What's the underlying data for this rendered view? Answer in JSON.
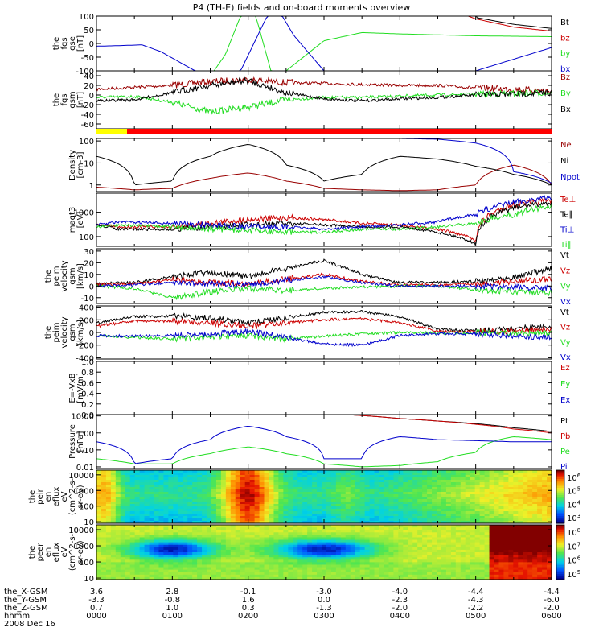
{
  "title": "P4 (TH-E) fields and on-board moments overview",
  "date_label": "2008 Dec 16",
  "x_axis": {
    "row_labels": [
      "the_X-GSM",
      "the_Y-GSM",
      "the_Z-GSM",
      "hhmm"
    ],
    "ticks": [
      {
        "hhmm": "0000",
        "x": "3.6",
        "y": "-3.3",
        "z": "0.7"
      },
      {
        "hhmm": "0100",
        "x": "2.8",
        "y": "-0.8",
        "z": "1.0"
      },
      {
        "hhmm": "0200",
        "x": "-0.1",
        "y": "1.6",
        "z": "0.3"
      },
      {
        "hhmm": "0300",
        "x": "-3.0",
        "y": "0.0",
        "z": "-1.3"
      },
      {
        "hhmm": "0400",
        "x": "-4.0",
        "y": "-2.3",
        "z": "-2.0"
      },
      {
        "hhmm": "0500",
        "x": "-4.4",
        "y": "-4.3",
        "z": "-2.2"
      },
      {
        "hhmm": "0600",
        "x": "-4.4",
        "y": "-6.0",
        "z": "-2.0"
      }
    ]
  },
  "colors": {
    "black": "#000000",
    "red": "#cc0000",
    "green": "#22dd22",
    "blue": "#0000cc",
    "darkred": "#990000",
    "yellow": "#ffff00",
    "bright_red": "#ff0000"
  },
  "panels": [
    {
      "id": "fgs-gse",
      "ylabel": [
        "the",
        "fgs",
        "gse",
        "[nT]"
      ],
      "ylim": [
        -100,
        100
      ],
      "yticks": [
        "100",
        "50",
        "0",
        "-50",
        "-100"
      ],
      "legend": [
        {
          "label": "Bt",
          "color": "#000000"
        },
        {
          "label": "bz",
          "color": "#cc0000"
        },
        {
          "label": "by",
          "color": "#22dd22"
        },
        {
          "label": "bx",
          "color": "#0000cc"
        }
      ]
    },
    {
      "id": "fgs-gsm",
      "ylabel": [
        "the",
        "fgs",
        "gsm",
        "[nT]"
      ],
      "ylim": [
        -70,
        50
      ],
      "yticks": [
        "60",
        "40",
        "20",
        "0",
        "-20",
        "-40",
        "-60"
      ],
      "legend": [
        {
          "label": "Bz",
          "color": "#990000"
        },
        {
          "label": "By",
          "color": "#22dd22"
        },
        {
          "label": "Bx",
          "color": "#000000"
        }
      ]
    },
    {
      "id": "density",
      "ylabel": [
        "Density",
        "[cm-3]"
      ],
      "scale": "log",
      "ylim": [
        0.5,
        130
      ],
      "yticks": [
        "100",
        "10",
        "1"
      ],
      "legend": [
        {
          "label": "Ne",
          "color": "#990000"
        },
        {
          "label": "Ni",
          "color": "#000000"
        },
        {
          "label": "Npot",
          "color": "#0000cc"
        }
      ]
    },
    {
      "id": "temperature",
      "ylabel": [
        "magt3",
        "[eV]"
      ],
      "scale": "log",
      "ylim": [
        40,
        6000
      ],
      "yticks": [
        "1000",
        "100"
      ],
      "legend": [
        {
          "label": "Te⊥",
          "color": "#cc0000"
        },
        {
          "label": "Te∥",
          "color": "#000000"
        },
        {
          "label": "Ti⊥",
          "color": "#0000cc"
        },
        {
          "label": "Ti∥",
          "color": "#22dd22"
        }
      ]
    },
    {
      "id": "velocity-gsm-electron",
      "ylabel": [
        "the",
        "peim",
        "velocity",
        "gsm",
        "[km/s]"
      ],
      "ylim": [
        -15,
        32
      ],
      "yticks": [
        "30",
        "20",
        "10",
        "0",
        "-10"
      ],
      "legend": [
        {
          "label": "Vt",
          "color": "#000000"
        },
        {
          "label": "Vz",
          "color": "#cc0000"
        },
        {
          "label": "Vy",
          "color": "#22dd22"
        },
        {
          "label": "Vx",
          "color": "#0000cc"
        }
      ]
    },
    {
      "id": "velocity-gsm-ion",
      "ylabel": [
        "the",
        "peim",
        "velocity",
        "gsm",
        "[km/s]"
      ],
      "ylim": [
        -420,
        420
      ],
      "yticks": [
        "400",
        "200",
        "0",
        "-200",
        "-400"
      ],
      "legend": [
        {
          "label": "Vt",
          "color": "#000000"
        },
        {
          "label": "Vz",
          "color": "#cc0000"
        },
        {
          "label": "Vy",
          "color": "#22dd22"
        },
        {
          "label": "Vx",
          "color": "#0000cc"
        }
      ]
    },
    {
      "id": "efield",
      "ylabel": [
        "E=-VxB",
        "[mV/m]"
      ],
      "ylim": [
        0,
        1
      ],
      "yticks": [
        "1.0",
        "0.8",
        "0.6",
        "0.4",
        "0.2",
        "0.0"
      ],
      "legend": [
        {
          "label": "Ez",
          "color": "#cc0000"
        },
        {
          "label": "Ey",
          "color": "#22dd22"
        },
        {
          "label": "Ex",
          "color": "#0000cc"
        }
      ]
    },
    {
      "id": "pressure",
      "ylabel": [
        "Pressure",
        "[nPa]"
      ],
      "scale": "log",
      "ylim": [
        0.008,
        12
      ],
      "yticks": [
        "10.00",
        "1.00",
        "0.10",
        "0.01"
      ],
      "legend": [
        {
          "label": "Pt",
          "color": "#000000"
        },
        {
          "label": "Pb",
          "color": "#cc0000"
        },
        {
          "label": "Pe",
          "color": "#22dd22"
        },
        {
          "label": "Pi",
          "color": "#0000cc"
        }
      ]
    },
    {
      "id": "ion-spectrogram",
      "ylabel": [
        "the",
        "peir",
        "en",
        "eflux",
        "eV",
        "(cm^2-s-",
        "sr-eV)"
      ],
      "scale": "log",
      "ylim": [
        8,
        20000
      ],
      "yticks": [
        "10000",
        "1000",
        "100",
        "10"
      ],
      "colorbar": {
        "ticks": [
          "10^6",
          "10^5",
          "10^4",
          "10^3"
        ]
      }
    },
    {
      "id": "electron-spectrogram",
      "ylabel": [
        "the",
        "peer",
        "en",
        "eflux",
        "eV",
        "(cm^2-s-",
        "sr-eV)"
      ],
      "scale": "log",
      "ylim": [
        8,
        20000
      ],
      "yticks": [
        "10000",
        "1000",
        "100",
        "10"
      ],
      "colorbar": {
        "ticks": [
          "10^8",
          "10^7",
          "10^6",
          "10^5"
        ]
      }
    }
  ],
  "chart_data": {
    "type": "line",
    "title": "P4 (TH-E) fields and on-board moments overview",
    "x_unit": "hhmm",
    "x_range": [
      "0000",
      "0600"
    ],
    "series": [
      {
        "panel": "fgs-gse",
        "name": "Bt",
        "x": [
          0,
          0.5,
          1,
          1.5,
          2,
          2.5,
          3,
          3.5,
          4,
          4.5,
          5,
          5.5,
          6
        ],
        "y": [
          1000,
          1000,
          1000,
          1000,
          1000,
          1000,
          1000,
          1000,
          1000,
          1000,
          95,
          70,
          55
        ]
      },
      {
        "panel": "fgs-gse",
        "name": "bz",
        "x": [
          4.9,
          5,
          5.5,
          6
        ],
        "y": [
          100,
          90,
          60,
          45
        ]
      },
      {
        "panel": "fgs-gse",
        "name": "by",
        "x": [
          1.55,
          1.7,
          1.9,
          2.1,
          2.3,
          2.5,
          3,
          3.5,
          4,
          5,
          6
        ],
        "y": [
          -100,
          -40,
          100,
          100,
          -100,
          -100,
          10,
          40,
          35,
          28,
          25
        ]
      },
      {
        "panel": "fgs-gse",
        "name": "bx",
        "x": [
          0,
          0.3,
          0.6,
          0.85,
          1.3,
          1.9,
          2.25,
          2.45,
          2.6,
          3,
          4,
          5,
          6
        ],
        "y": [
          -10,
          -8,
          -5,
          -30,
          -100,
          -100,
          100,
          100,
          30,
          -100,
          -100,
          -100,
          -15
        ]
      },
      {
        "panel": "fgs-gsm",
        "name": "Bz",
        "x": [
          0,
          0.5,
          1,
          1.5,
          2,
          2.5,
          3,
          3.5,
          4,
          4.5,
          5,
          5.5,
          6
        ],
        "y": [
          12,
          16,
          20,
          28,
          32,
          26,
          24,
          22,
          20,
          20,
          15,
          12,
          8
        ]
      },
      {
        "panel": "fgs-gsm",
        "name": "By",
        "x": [
          0,
          0.5,
          1,
          1.5,
          2,
          2.5,
          3,
          3.5,
          4,
          4.5,
          5,
          5.5,
          6
        ],
        "y": [
          -5,
          -3,
          -15,
          -35,
          -25,
          -10,
          -5,
          -5,
          -2,
          0,
          2,
          3,
          5
        ]
      },
      {
        "panel": "fgs-gsm",
        "name": "Bx",
        "x": [
          0,
          0.5,
          1,
          1.5,
          2,
          2.5,
          3,
          3.5,
          4,
          4.5,
          5,
          5.5,
          6
        ],
        "y": [
          -12,
          -10,
          5,
          20,
          30,
          5,
          -8,
          -12,
          -8,
          -5,
          0,
          2,
          5
        ]
      },
      {
        "panel": "density",
        "name": "Ne",
        "x": [
          0,
          0.5,
          1,
          1.5,
          2,
          2.5,
          3,
          3.5,
          4,
          4.5,
          5,
          5.5,
          6
        ],
        "y": [
          0.8,
          0.6,
          0.7,
          2,
          3.5,
          1.5,
          0.7,
          0.6,
          0.55,
          0.6,
          1,
          8,
          1
        ]
      },
      {
        "panel": "density",
        "name": "Ni",
        "x": [
          0,
          0.5,
          1,
          1.5,
          2,
          2.5,
          3,
          3.5,
          4,
          4.5,
          5,
          5.5,
          6
        ],
        "y": [
          20,
          1,
          1.5,
          20,
          70,
          8,
          1.5,
          3,
          20,
          15,
          7,
          3,
          1
        ]
      },
      {
        "panel": "density",
        "name": "Npot",
        "x": [
          3.5,
          4,
          4.5,
          5,
          5.5,
          6
        ],
        "y": [
          130,
          130,
          120,
          80,
          4,
          1.2
        ]
      },
      {
        "panel": "temperature",
        "name": "Te⊥",
        "x": [
          0,
          0.3,
          1,
          1.5,
          2,
          2.5,
          3,
          3.5,
          4,
          4.5,
          5,
          5.5,
          6
        ],
        "y": [
          300,
          250,
          250,
          350,
          500,
          600,
          500,
          350,
          300,
          200,
          70,
          2000,
          3000
        ]
      },
      {
        "panel": "temperature",
        "name": "Te∥",
        "x": [
          0,
          0.3,
          1,
          1.5,
          2,
          2.5,
          3,
          3.5,
          4,
          4.5,
          5,
          5.5,
          6
        ],
        "y": [
          300,
          200,
          200,
          250,
          300,
          350,
          300,
          250,
          250,
          150,
          50,
          1500,
          2500
        ]
      },
      {
        "panel": "temperature",
        "name": "Ti⊥",
        "x": [
          0,
          0.3,
          1,
          1.5,
          2,
          2.5,
          3,
          3.5,
          4,
          4.5,
          5,
          5.5,
          6
        ],
        "y": [
          300,
          400,
          350,
          300,
          250,
          250,
          200,
          250,
          300,
          400,
          800,
          2500,
          4000
        ]
      },
      {
        "panel": "temperature",
        "name": "Ti∥",
        "x": [
          0,
          0.3,
          1,
          1.5,
          2,
          2.5,
          3,
          3.5,
          4,
          4.5,
          5,
          5.5,
          6
        ],
        "y": [
          250,
          300,
          250,
          200,
          180,
          150,
          150,
          200,
          200,
          250,
          350,
          800,
          1800
        ]
      },
      {
        "panel": "velocity-gsm-electron",
        "name": "Vt",
        "x": [
          0,
          0.5,
          1,
          1.5,
          2,
          2.5,
          3,
          3.5,
          4,
          4.5,
          5,
          5.5,
          6
        ],
        "y": [
          2,
          3,
          8,
          12,
          8,
          15,
          22,
          10,
          3,
          3,
          4,
          8,
          15
        ]
      },
      {
        "panel": "velocity-gsm-electron",
        "name": "Vz",
        "x": [
          0,
          0.5,
          1,
          1.5,
          2,
          2.5,
          3,
          3.5,
          4,
          4.5,
          5,
          5.5,
          6
        ],
        "y": [
          1,
          2,
          5,
          3,
          2,
          6,
          10,
          4,
          1,
          1,
          2,
          4,
          6
        ]
      },
      {
        "panel": "velocity-gsm-electron",
        "name": "Vy",
        "x": [
          0,
          0.5,
          1,
          1.5,
          2,
          2.5,
          3,
          3.5,
          4,
          4.5,
          5,
          5.5,
          6
        ],
        "y": [
          0,
          -2,
          -10,
          -5,
          -2,
          -4,
          -2,
          -1,
          0,
          0,
          -3,
          -5,
          -6
        ]
      },
      {
        "panel": "velocity-gsm-electron",
        "name": "Vx",
        "x": [
          0,
          0.5,
          1,
          1.5,
          2,
          2.5,
          3,
          3.5,
          4,
          4.5,
          5,
          5.5,
          6
        ],
        "y": [
          0,
          1,
          3,
          2,
          1,
          5,
          8,
          3,
          0,
          0,
          0,
          -1,
          -2
        ]
      },
      {
        "panel": "velocity-gsm-ion",
        "name": "Vt",
        "x": [
          0,
          0.5,
          1,
          1.5,
          2,
          2.5,
          3,
          3.5,
          4,
          4.5,
          5,
          5.5,
          6
        ],
        "y": [
          150,
          250,
          260,
          230,
          150,
          230,
          320,
          330,
          250,
          50,
          30,
          60,
          100
        ]
      },
      {
        "panel": "velocity-gsm-ion",
        "name": "Vz",
        "x": [
          0,
          0.5,
          1,
          1.5,
          2,
          2.5,
          3,
          3.5,
          4,
          4.5,
          5,
          5.5,
          6
        ],
        "y": [
          100,
          180,
          180,
          150,
          100,
          150,
          200,
          220,
          150,
          20,
          10,
          20,
          60
        ]
      },
      {
        "panel": "velocity-gsm-ion",
        "name": "Vy",
        "x": [
          0,
          0.5,
          1,
          1.5,
          2,
          2.5,
          3,
          3.5,
          4,
          4.5,
          5,
          5.5,
          6
        ],
        "y": [
          -50,
          -80,
          -100,
          -70,
          -50,
          -100,
          -60,
          -20,
          0,
          -10,
          -5,
          -10,
          -20
        ]
      },
      {
        "panel": "velocity-gsm-ion",
        "name": "Vx",
        "x": [
          0,
          0.5,
          1,
          1.5,
          2,
          2.5,
          3,
          3.5,
          4,
          4.5,
          5,
          5.5,
          6
        ],
        "y": [
          -50,
          -60,
          -50,
          -30,
          20,
          -80,
          -180,
          -200,
          -50,
          -20,
          -20,
          -50,
          -80
        ]
      },
      {
        "panel": "pressure",
        "name": "Pt",
        "x": [
          3.3,
          4,
          4.5,
          5,
          5.5,
          6
        ],
        "y": [
          12,
          7,
          5,
          3.5,
          2,
          1.2
        ]
      },
      {
        "panel": "pressure",
        "name": "Pb",
        "x": [
          3.3,
          4,
          4.5,
          5,
          5.5,
          6
        ],
        "y": [
          12,
          7,
          5,
          3.2,
          1.7,
          1
        ]
      },
      {
        "panel": "pressure",
        "name": "Pe",
        "x": [
          0,
          0.5,
          1,
          1.5,
          2,
          2.5,
          3,
          3.5,
          4,
          4.5,
          5,
          5.5,
          6
        ],
        "y": [
          0.03,
          0.015,
          0.015,
          0.06,
          0.15,
          0.06,
          0.015,
          0.01,
          0.012,
          0.02,
          0.07,
          0.6,
          0.4
        ]
      },
      {
        "panel": "pressure",
        "name": "Pi",
        "x": [
          0,
          0.5,
          1,
          1.5,
          2,
          2.5,
          3,
          3.5,
          4,
          4.5,
          5,
          5.5,
          6
        ],
        "y": [
          0.3,
          0.015,
          0.03,
          0.4,
          2.5,
          0.6,
          0.03,
          0.03,
          0.6,
          0.4,
          0.35,
          0.3,
          0.3
        ]
      }
    ]
  }
}
